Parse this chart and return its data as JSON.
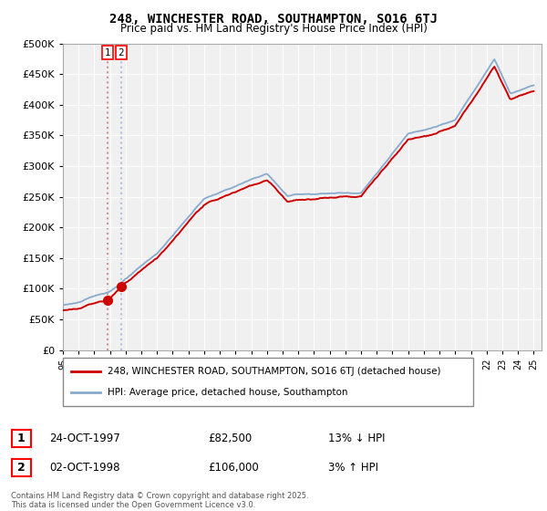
{
  "title": "248, WINCHESTER ROAD, SOUTHAMPTON, SO16 6TJ",
  "subtitle": "Price paid vs. HM Land Registry's House Price Index (HPI)",
  "legend_line1": "248, WINCHESTER ROAD, SOUTHAMPTON, SO16 6TJ (detached house)",
  "legend_line2": "HPI: Average price, detached house, Southampton",
  "transaction1_date": "24-OCT-1997",
  "transaction1_price": "£82,500",
  "transaction1_hpi": "13% ↓ HPI",
  "transaction2_date": "02-OCT-1998",
  "transaction2_price": "£106,000",
  "transaction2_hpi": "3% ↑ HPI",
  "footer": "Contains HM Land Registry data © Crown copyright and database right 2025.\nThis data is licensed under the Open Government Licence v3.0.",
  "property_color": "#cc0000",
  "hpi_color": "#88aacc",
  "vline_color_1": "#cc8888",
  "vline_color_2": "#aabbdd",
  "background_color": "#f0f0f0",
  "grid_color": "#ffffff",
  "ylim_min": 0,
  "ylim_max": 500000,
  "t1_year": 1997.79,
  "t2_year": 1998.75,
  "t1_price": 82500,
  "t2_price": 106000
}
